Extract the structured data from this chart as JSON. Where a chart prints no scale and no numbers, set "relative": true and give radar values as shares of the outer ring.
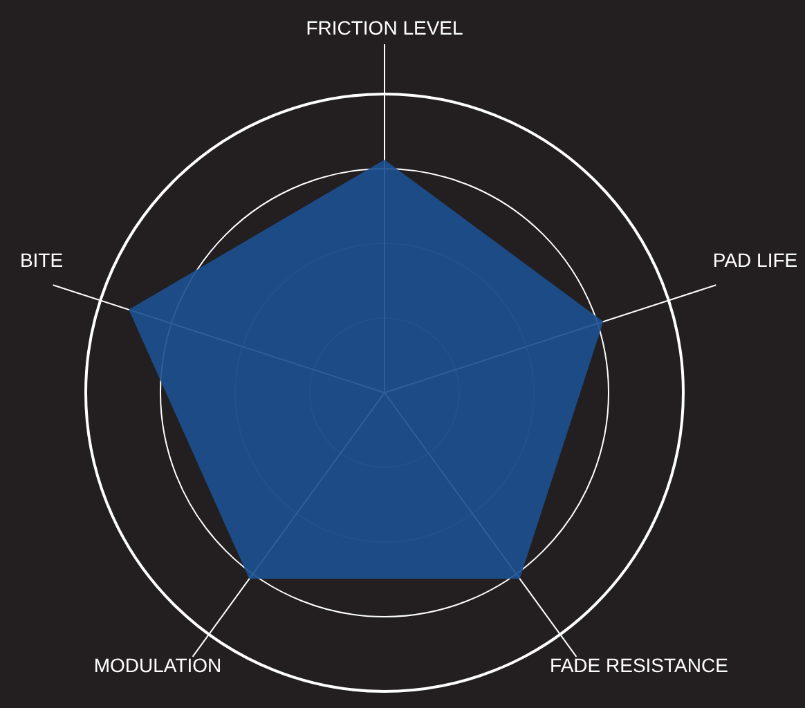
{
  "chart_data": {
    "type": "radar",
    "relative": true,
    "grid": true,
    "categories": [
      "FRICTION LEVEL",
      "PAD LIFE",
      "FADE RESISTANCE",
      "MODULATION",
      "BITE"
    ],
    "series": [
      {
        "color": "#1c4f8f",
        "values": [
          0.78,
          0.77,
          0.77,
          0.77,
          0.9
        ]
      }
    ]
  }
}
